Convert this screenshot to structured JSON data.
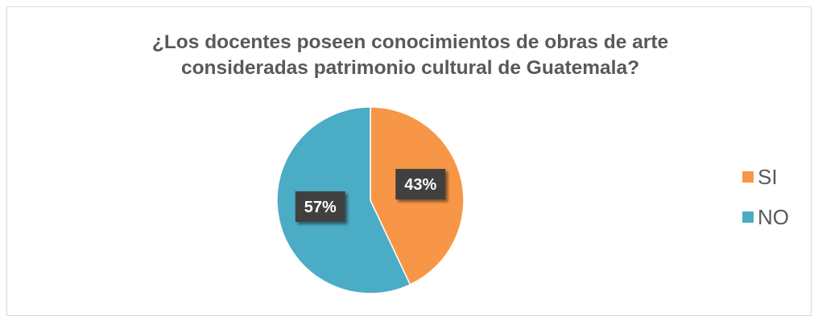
{
  "chart_data": {
    "type": "pie",
    "title_lines": [
      "¿Los docentes poseen conocimientos de obras de arte",
      "consideradas patrimonio cultural de Guatemala?"
    ],
    "slices": [
      {
        "label": "SI",
        "value": 43,
        "display": "43%",
        "color": "#F79646"
      },
      {
        "label": "NO",
        "value": 57,
        "display": "57%",
        "color": "#4BACC6"
      }
    ],
    "legend_position": "right",
    "data_label_style": "dark-box"
  }
}
